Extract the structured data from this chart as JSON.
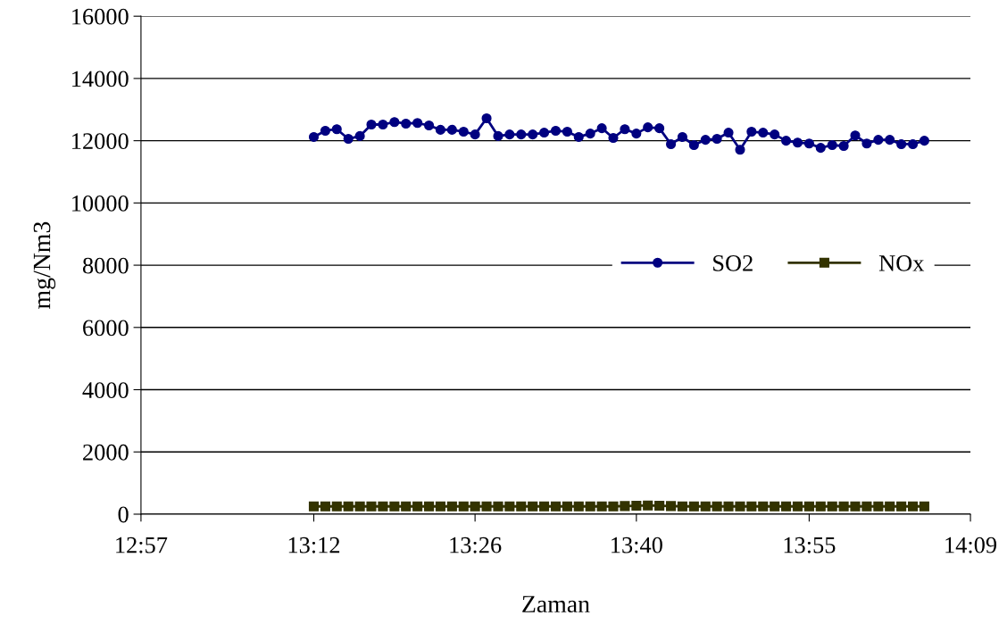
{
  "chart_data": {
    "type": "line",
    "xlabel": "Zaman",
    "ylabel": "mg/Nm3",
    "x": [
      13.2,
      13.2167,
      13.2333,
      13.25,
      13.2667,
      13.2833,
      13.3,
      13.3167,
      13.3333,
      13.35,
      13.3667,
      13.3833,
      13.4,
      13.4167,
      13.4333,
      13.45,
      13.4667,
      13.4833,
      13.5,
      13.5167,
      13.5333,
      13.55,
      13.5667,
      13.5833,
      13.6,
      13.6167,
      13.6333,
      13.65,
      13.6667,
      13.6833,
      13.7,
      13.7167,
      13.7333,
      13.75,
      13.7667,
      13.7833,
      13.8,
      13.8167,
      13.8333,
      13.85,
      13.8667,
      13.8833,
      13.9,
      13.9167,
      13.9333,
      13.95,
      13.9667,
      13.9833,
      14.0,
      14.0167,
      14.0333,
      14.05,
      14.0667,
      14.0833
    ],
    "series": [
      {
        "name": "SO2",
        "color": "#000080",
        "marker": "circle",
        "values": [
          12120,
          12320,
          12370,
          12060,
          12150,
          12520,
          12520,
          12600,
          12550,
          12570,
          12490,
          12350,
          12350,
          12290,
          12200,
          12720,
          12150,
          12200,
          12200,
          12200,
          12260,
          12320,
          12290,
          12120,
          12230,
          12400,
          12090,
          12370,
          12230,
          12430,
          12400,
          11890,
          12120,
          11860,
          12030,
          12060,
          12260,
          11710,
          12290,
          12260,
          12200,
          12000,
          11940,
          11910,
          11770,
          11860,
          11830,
          12170,
          11910,
          12030,
          12030,
          11890,
          11890,
          12000
        ]
      },
      {
        "name": "NOx",
        "color": "#333300",
        "marker": "square",
        "values": [
          250,
          250,
          250,
          250,
          250,
          250,
          250,
          250,
          250,
          250,
          250,
          250,
          250,
          250,
          250,
          250,
          250,
          250,
          250,
          250,
          250,
          250,
          250,
          250,
          250,
          250,
          250,
          260,
          270,
          280,
          270,
          260,
          250,
          250,
          250,
          250,
          250,
          250,
          250,
          250,
          250,
          250,
          250,
          250,
          250,
          250,
          250,
          250,
          250,
          250,
          250,
          250,
          250,
          250
        ]
      }
    ],
    "xlim": [
      12.95,
      14.15
    ],
    "xticks": [
      {
        "value": 12.95,
        "label": "12:57"
      },
      {
        "value": 13.2,
        "label": "13:12"
      },
      {
        "value": 13.4333,
        "label": "13:26"
      },
      {
        "value": 13.6667,
        "label": "13:40"
      },
      {
        "value": 13.9167,
        "label": "13:55"
      },
      {
        "value": 14.15,
        "label": "14:09"
      }
    ],
    "ylim": [
      0,
      16000
    ],
    "yticks": [
      0,
      2000,
      4000,
      6000,
      8000,
      10000,
      12000,
      14000,
      16000
    ],
    "grid": "y",
    "legend": "right",
    "line_style": "solid"
  }
}
